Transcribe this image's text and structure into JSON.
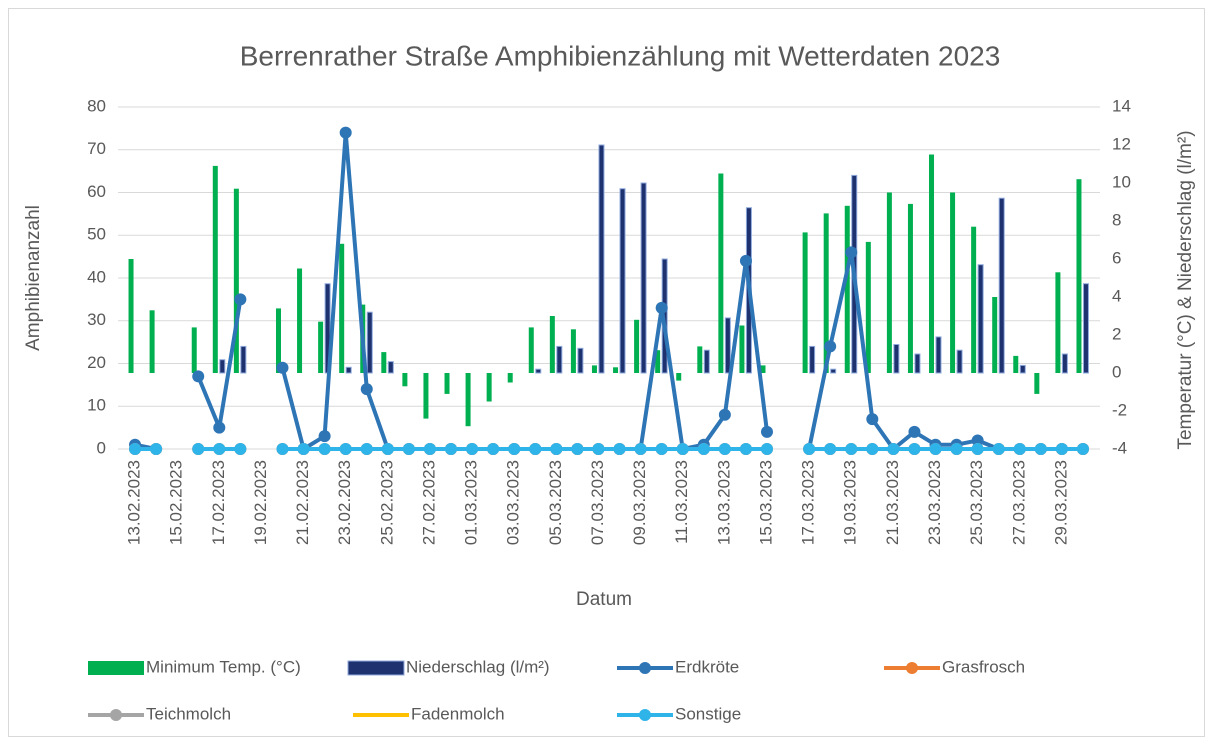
{
  "chart_data": {
    "type": "combo",
    "title": "Berrenrather Straße Amphibienzählung mit Wetterdaten 2023",
    "x_label": "Datum",
    "y_label": "Amphibienanzahl",
    "y2_label": "Temperatur (°C) & Niederschlag (l/m²)",
    "categories": [
      "13.02.2023",
      null,
      "15.02.2023",
      null,
      "17.02.2023",
      null,
      "19.02.2023",
      null,
      "21.02.2023",
      null,
      "23.02.2023",
      null,
      "25.02.2023",
      null,
      "27.02.2023",
      null,
      "01.03.2023",
      null,
      "03.03.2023",
      null,
      "05.03.2023",
      null,
      "07.03.2023",
      null,
      "09.03.2023",
      null,
      "11.03.2023",
      null,
      "13.03.2023",
      null,
      "15.03.2023",
      null,
      "17.03.2023",
      null,
      "19.03.2023",
      null,
      "21.03.2023",
      null,
      "23.03.2023",
      null,
      "25.03.2023",
      null,
      "27.03.2023",
      null,
      "29.03.2023",
      null
    ],
    "ylim": [
      0,
      80
    ],
    "yticks": [
      0,
      10,
      20,
      30,
      40,
      50,
      60,
      70,
      80
    ],
    "y2lim": [
      -4,
      14
    ],
    "y2ticks": [
      -4,
      -2,
      0,
      2,
      4,
      6,
      8,
      10,
      12,
      14
    ],
    "grid": true,
    "legend": "bottom",
    "series": [
      {
        "name": "Minimum Temp. (°C)",
        "type": "bar",
        "axis": "y2",
        "color": "#00b050",
        "values": [
          6,
          3.3,
          null,
          2.4,
          10.9,
          9.7,
          null,
          3.4,
          5.5,
          2.7,
          6.8,
          3.6,
          1.1,
          -0.7,
          -2.4,
          -1.1,
          -2.8,
          -1.5,
          -0.5,
          2.4,
          3,
          2.3,
          0.4,
          0.3,
          2.8,
          1.2,
          -0.4,
          1.4,
          10.5,
          2.5,
          0.4,
          null,
          7.4,
          8.4,
          8.8,
          6.9,
          9.5,
          8.9,
          11.5,
          9.5,
          7.7,
          4,
          0.9,
          -1.1,
          5.3,
          10.2
        ]
      },
      {
        "name": "Niederschlag (l/m²)",
        "type": "bar",
        "axis": "y2",
        "color": "#1f3270",
        "values": [
          0,
          0,
          null,
          0,
          0.7,
          1.4,
          null,
          0,
          0,
          4.7,
          0.3,
          3.2,
          0.6,
          0,
          0,
          0,
          0,
          0,
          0,
          0.2,
          1.4,
          1.3,
          12,
          9.7,
          10,
          6,
          0,
          1.2,
          2.9,
          8.7,
          0,
          null,
          1.4,
          0.2,
          10.4,
          0,
          1.5,
          1,
          1.9,
          1.2,
          5.7,
          9.2,
          0.4,
          0,
          1,
          4.7
        ]
      },
      {
        "name": "Erdkröte",
        "type": "line",
        "marker": true,
        "color": "#2e75b6",
        "values": [
          1,
          0,
          null,
          17,
          5,
          35,
          null,
          19,
          0,
          3,
          74,
          14,
          0,
          0,
          0,
          0,
          0,
          0,
          0,
          0,
          0,
          0,
          0,
          0,
          0,
          33,
          0,
          1,
          8,
          44,
          4,
          null,
          0,
          24,
          46,
          7,
          0,
          4,
          1,
          1,
          2,
          0,
          0,
          0,
          0,
          0
        ]
      },
      {
        "name": "Grasfrosch",
        "type": "line",
        "marker": true,
        "color": "#ed7d31",
        "values": [
          0,
          0,
          null,
          0,
          0,
          0,
          null,
          0,
          0,
          0,
          0,
          0,
          0,
          0,
          0,
          0,
          0,
          0,
          0,
          0,
          0,
          0,
          0,
          0,
          0,
          0,
          0,
          0,
          0,
          0,
          0,
          null,
          0,
          0,
          0,
          0,
          0,
          0,
          0,
          0,
          0,
          0,
          0,
          0,
          0,
          0
        ]
      },
      {
        "name": "Teichmolch",
        "type": "line",
        "marker": true,
        "color": "#a5a5a5",
        "values": [
          0,
          0,
          null,
          0,
          0,
          0,
          null,
          0,
          0,
          0,
          0,
          0,
          0,
          0,
          0,
          0,
          0,
          0,
          0,
          0,
          0,
          0,
          0,
          0,
          0,
          0,
          0,
          0,
          0,
          0,
          0,
          null,
          0,
          0,
          0,
          0,
          0,
          0,
          0,
          0,
          0,
          0,
          0,
          0,
          0,
          0
        ]
      },
      {
        "name": "Fadenmolch",
        "type": "line",
        "marker": false,
        "color": "#ffc000",
        "values": [
          0,
          0,
          null,
          0,
          0,
          0,
          null,
          0,
          0,
          0,
          0,
          0,
          0,
          0,
          0,
          0,
          0,
          0,
          0,
          0,
          0,
          0,
          0,
          0,
          0,
          0,
          0,
          0,
          0,
          0,
          0,
          null,
          0,
          0,
          0,
          0,
          0,
          0,
          0,
          0,
          0,
          0,
          0,
          0,
          0,
          0
        ]
      },
      {
        "name": "Sonstige",
        "type": "line",
        "marker": true,
        "color": "#2fb4e9",
        "values": [
          0,
          0,
          null,
          0,
          0,
          0,
          null,
          0,
          0,
          0,
          0,
          0,
          0,
          0,
          0,
          0,
          0,
          0,
          0,
          0,
          0,
          0,
          0,
          0,
          0,
          0,
          0,
          0,
          0,
          0,
          0,
          null,
          0,
          0,
          0,
          0,
          0,
          0,
          0,
          0,
          0,
          0,
          0,
          0,
          0,
          0
        ]
      }
    ]
  }
}
